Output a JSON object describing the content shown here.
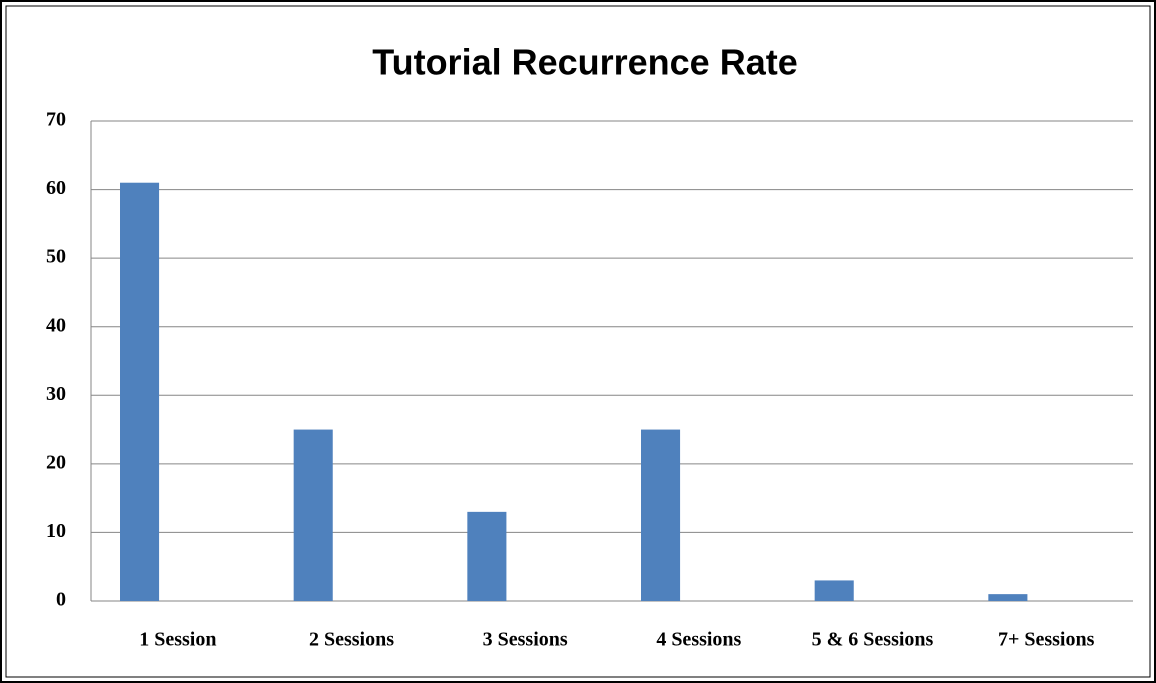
{
  "chart_data": {
    "type": "bar",
    "title": "Tutorial Recurrence Rate",
    "categories": [
      "1 Session",
      "2 Sessions",
      "3 Sessions",
      "4 Sessions",
      "5 & 6 Sessions",
      "7+ Sessions"
    ],
    "values": [
      61,
      25,
      13,
      25,
      3,
      1
    ],
    "color": "#4f81bd",
    "ylim": [
      0,
      70
    ],
    "yticks": [
      0,
      10,
      20,
      30,
      40,
      50,
      60,
      70
    ],
    "grid": true
  }
}
